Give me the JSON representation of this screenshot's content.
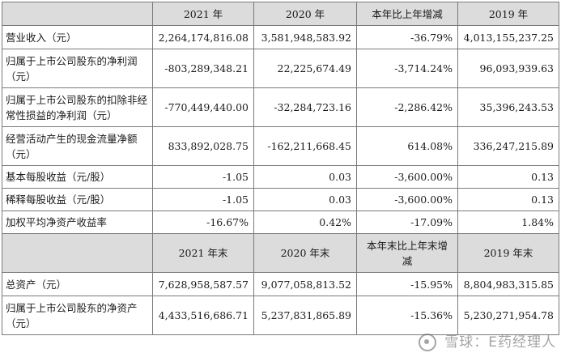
{
  "header_top": [
    "",
    "2021 年",
    "2020 年",
    "本年比上年增减",
    "2019 年"
  ],
  "rows_top": [
    {
      "label": "营业收入（元）",
      "v2021": "2,264,174,816.08",
      "v2020": "3,581,948,583.92",
      "change": "-36.79%",
      "v2019": "4,013,155,237.25"
    },
    {
      "label": "归属于上市公司股东的净利润（元）",
      "v2021": "-803,289,348.21",
      "v2020": "22,225,674.49",
      "change": "-3,714.24%",
      "v2019": "96,093,939.63"
    },
    {
      "label": "归属于上市公司股东的扣除非经常性损益的净利润（元）",
      "v2021": "-770,449,440.00",
      "v2020": "-32,284,723.16",
      "change": "-2,286.42%",
      "v2019": "35,396,243.53"
    },
    {
      "label": "经营活动产生的现金流量净额（元）",
      "v2021": "833,892,028.75",
      "v2020": "-162,211,668.45",
      "change": "614.08%",
      "v2019": "336,247,215.89"
    },
    {
      "label": "基本每股收益（元/股）",
      "v2021": "-1.05",
      "v2020": "0.03",
      "change": "-3,600.00%",
      "v2019": "0.13"
    },
    {
      "label": "稀释每股收益（元/股）",
      "v2021": "-1.05",
      "v2020": "0.03",
      "change": "-3,600.00%",
      "v2019": "0.13"
    },
    {
      "label": "加权平均净资产收益率",
      "v2021": "-16.67%",
      "v2020": "0.42%",
      "change": "-17.09%",
      "v2019": "1.84%"
    }
  ],
  "header_bottom": [
    "",
    "2021 年末",
    "2020 年末",
    "本年末比上年末增减",
    "2019 年末"
  ],
  "rows_bottom": [
    {
      "label": "总资产（元）",
      "v2021": "7,628,958,587.57",
      "v2020": "9,077,058,813.52",
      "change": "-15.95%",
      "v2019": "8,804,983,315.85"
    },
    {
      "label": "归属于上市公司股东的净资产（元）",
      "v2021": "4,433,516,686.71",
      "v2020": "5,237,831,865.89",
      "change": "-15.36%",
      "v2019": "5,230,271,954.78"
    }
  ],
  "watermark": "雪球：E药经理人",
  "colors": {
    "header_bg": "#dcdcdc",
    "border": "#7a7a7a"
  }
}
